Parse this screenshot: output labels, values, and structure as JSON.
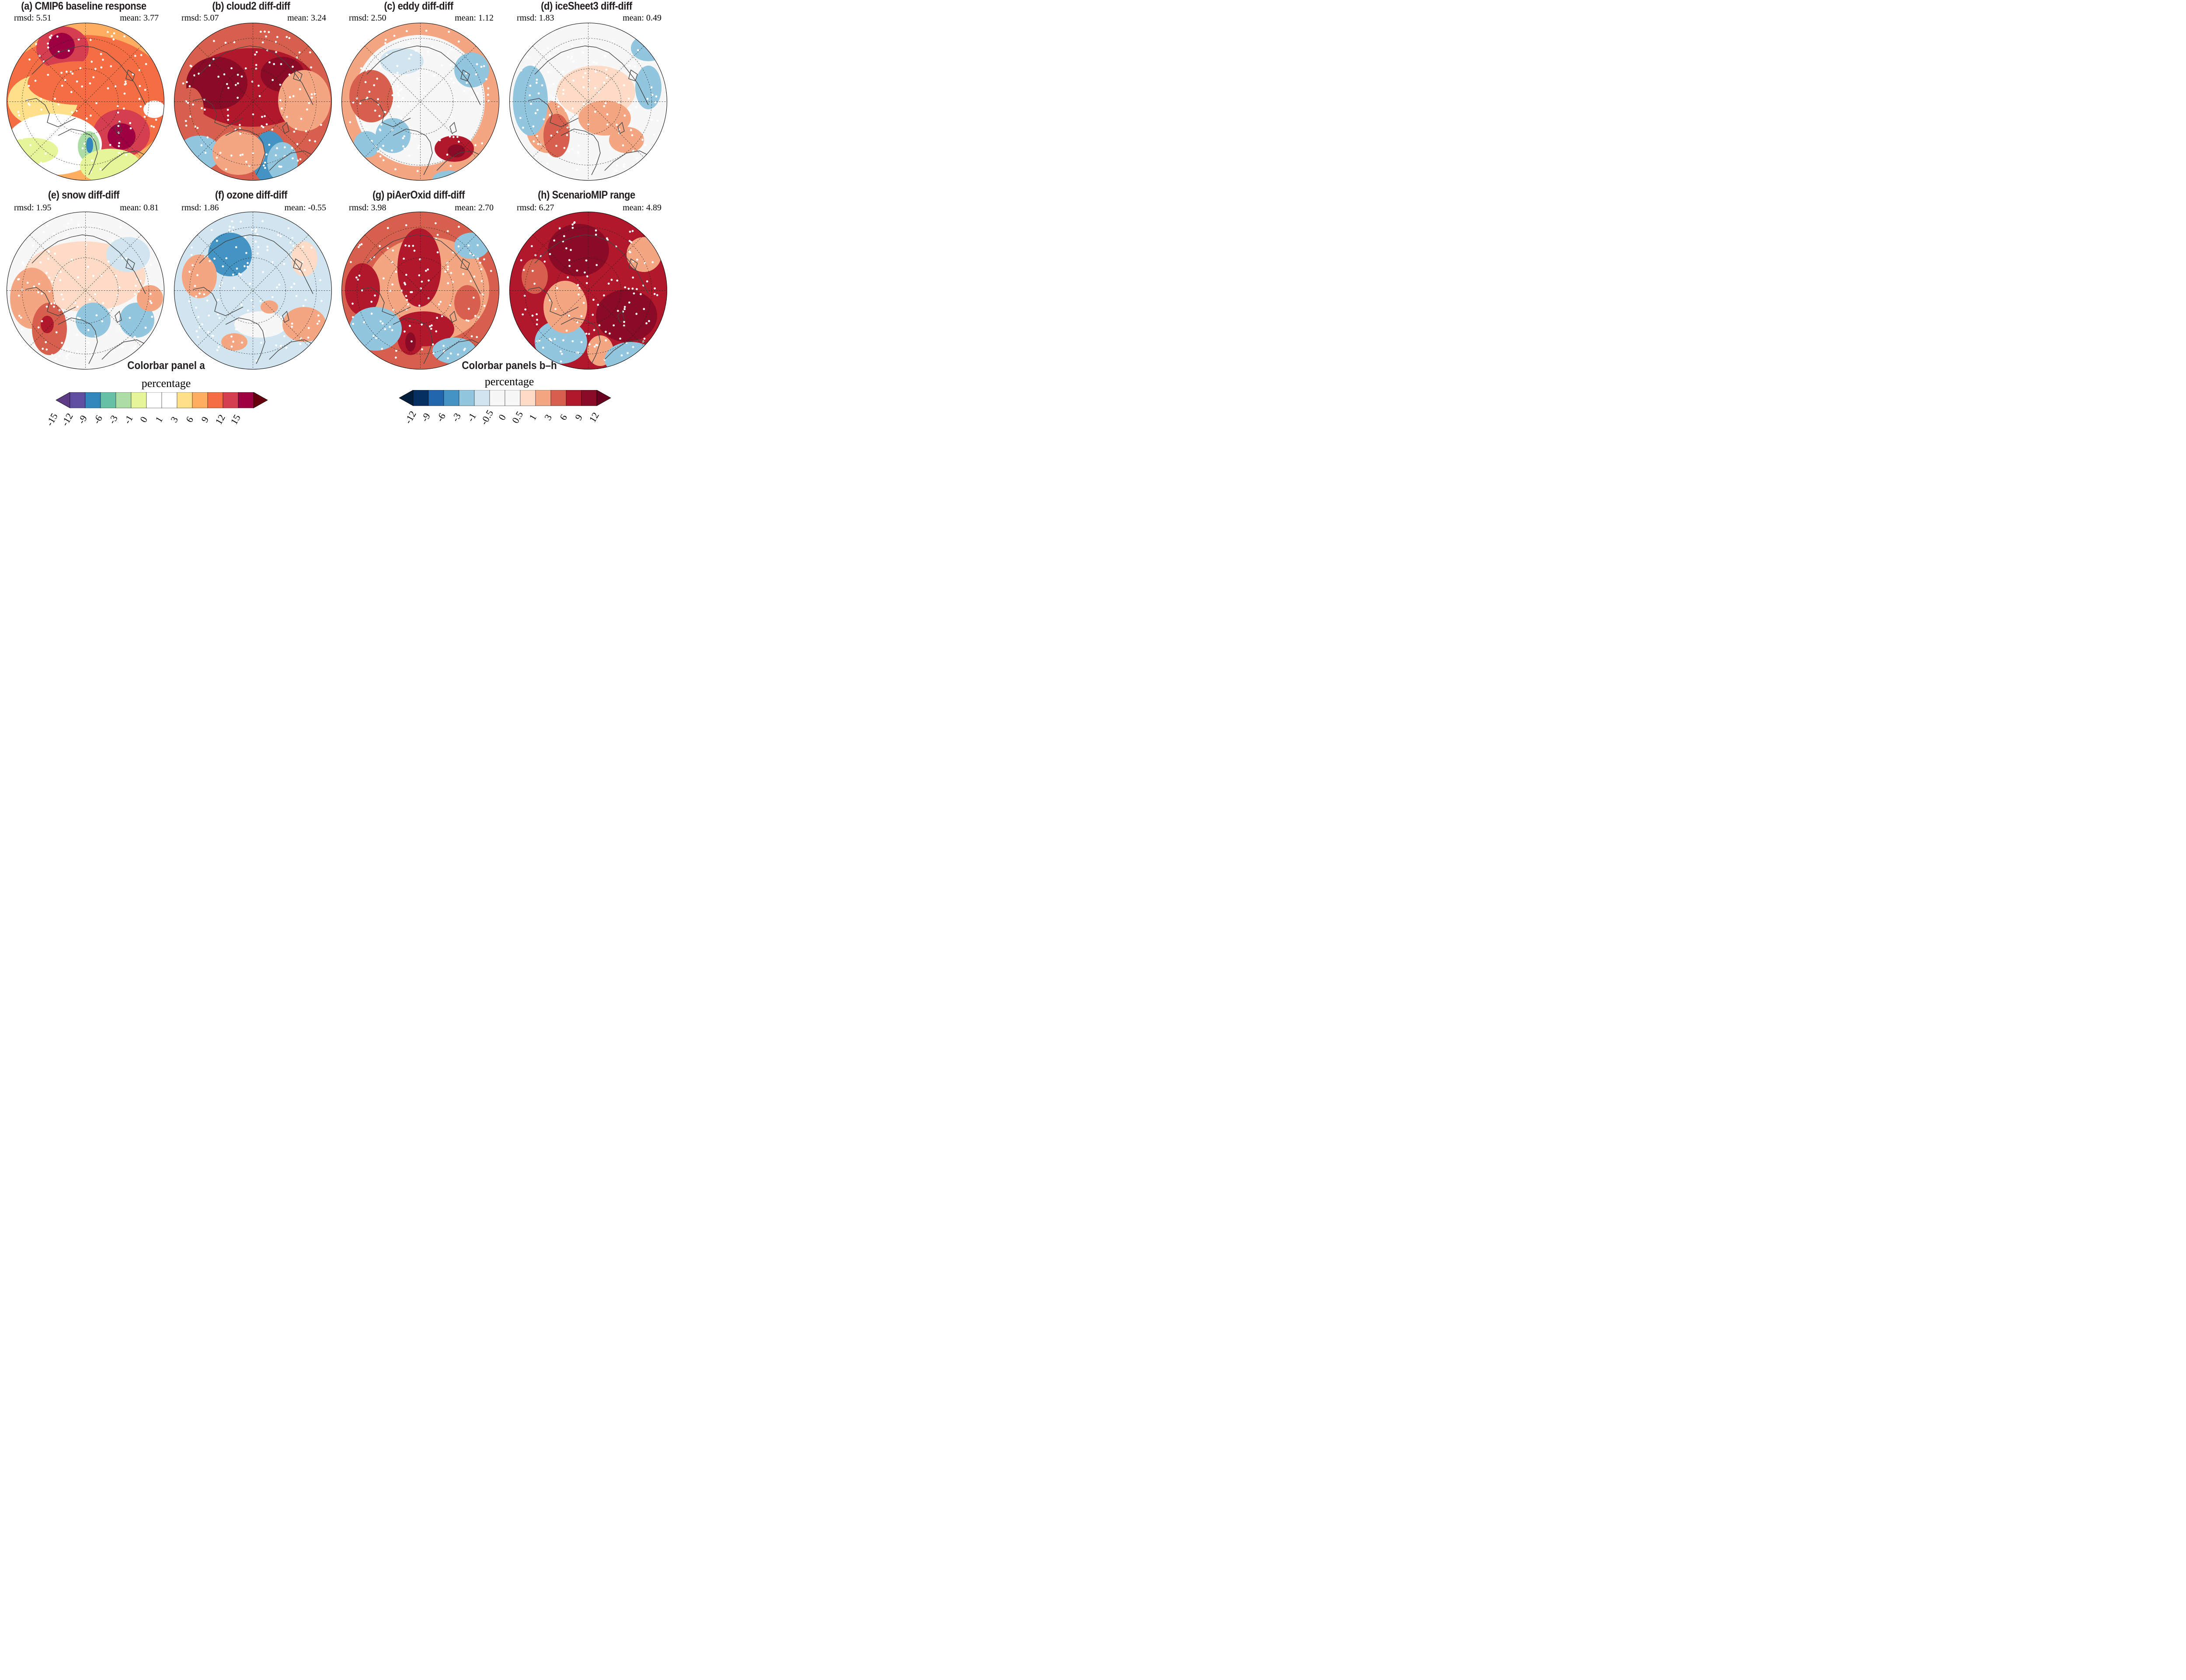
{
  "chart_data": {
    "type": "heatmap",
    "projection": "north polar stereographic",
    "panels": [
      {
        "id": "a",
        "title": "(a) CMIP6 baseline response",
        "rmsd_label": "rmsd: 5.51",
        "mean_label": "mean: 3.77",
        "rmsd": 5.51,
        "mean": 3.77,
        "colorbar": "a"
      },
      {
        "id": "b",
        "title": "(b) cloud2 diff-diff",
        "rmsd_label": "rmsd: 5.07",
        "mean_label": "mean: 3.24",
        "rmsd": 5.07,
        "mean": 3.24,
        "colorbar": "bh"
      },
      {
        "id": "c",
        "title": "(c) eddy diff-diff",
        "rmsd_label": "rmsd: 2.50",
        "mean_label": "mean: 1.12",
        "rmsd": 2.5,
        "mean": 1.12,
        "colorbar": "bh"
      },
      {
        "id": "d",
        "title": "(d) iceSheet3 diff-diff",
        "rmsd_label": "rmsd: 1.83",
        "mean_label": "mean: 0.49",
        "rmsd": 1.83,
        "mean": 0.49,
        "colorbar": "bh"
      },
      {
        "id": "e",
        "title": "(e) snow diff-diff",
        "rmsd_label": "rmsd: 1.95",
        "mean_label": "mean: 0.81",
        "rmsd": 1.95,
        "mean": 0.81,
        "colorbar": "bh"
      },
      {
        "id": "f",
        "title": "(f) ozone diff-diff",
        "rmsd_label": "rmsd: 1.86",
        "mean_label": "mean: -0.55",
        "rmsd": 1.86,
        "mean": -0.55,
        "colorbar": "bh"
      },
      {
        "id": "g",
        "title": "(g) piAerOxid diff-diff",
        "rmsd_label": "rmsd: 3.98",
        "mean_label": "mean: 2.70",
        "rmsd": 3.98,
        "mean": 2.7,
        "colorbar": "bh"
      },
      {
        "id": "h",
        "title": "(h) ScenarioMIP range",
        "rmsd_label": "rmsd: 6.27",
        "mean_label": "mean: 4.89",
        "rmsd": 6.27,
        "mean": 4.89,
        "colorbar": "bh"
      }
    ],
    "colorbars": [
      {
        "id": "a",
        "title": "Colorbar panel a",
        "label": "percentage",
        "ticks": [
          "-15",
          "-12",
          "-9",
          "-6",
          "-3",
          "-1",
          "0",
          "1",
          "3",
          "6",
          "9",
          "12",
          "15"
        ],
        "under_color": "#5e3c85",
        "over_color": "#67000d",
        "colors": [
          "#5e4fa2",
          "#3288bd",
          "#66c2a5",
          "#abdda4",
          "#e6f598",
          "#ffffff",
          "#ffffff",
          "#fee08b",
          "#fdae61",
          "#f46d43",
          "#d53e4f",
          "#9e0142"
        ]
      },
      {
        "id": "bh",
        "title": "Colorbar panels b–h",
        "label": "percentage",
        "ticks": [
          "-12",
          "-9",
          "-6",
          "-3",
          "-1",
          "-0.5",
          "0",
          "0.5",
          "1",
          "3",
          "6",
          "9",
          "12"
        ],
        "under_color": "#011f3a",
        "over_color": "#67001f",
        "colors": [
          "#053061",
          "#2166ac",
          "#4393c3",
          "#92c5de",
          "#d1e5f0",
          "#f7f7f7",
          "#f7f7f7",
          "#fddbc7",
          "#f4a582",
          "#d6604d",
          "#b2182b",
          "#8a0b25"
        ]
      }
    ],
    "stippling": "white dots mark regions (not statistically significant)",
    "gridlines": "dashed latitude circles and meridians",
    "xlabel": "",
    "ylabel": ""
  }
}
